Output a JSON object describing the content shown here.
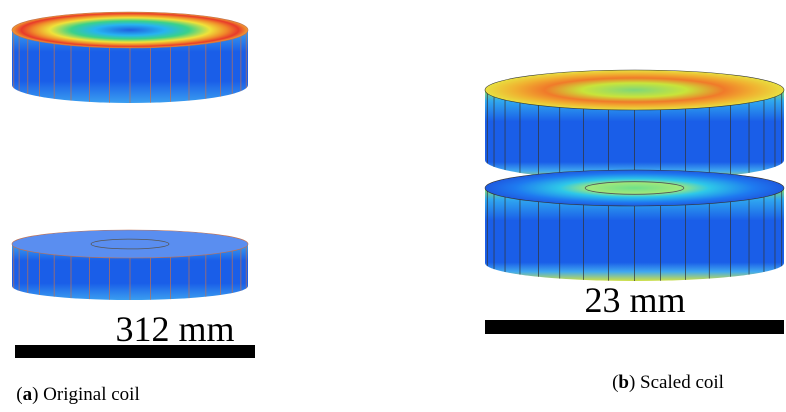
{
  "subfigures": [
    {
      "scale_label": "312 mm",
      "caption": {
        "open": "(",
        "label": "a",
        "rest": ") Original coil"
      }
    },
    {
      "scale_label": "23 mm",
      "caption": {
        "open": "(",
        "label": "b",
        "rest": ") Scaled coil"
      }
    }
  ]
}
